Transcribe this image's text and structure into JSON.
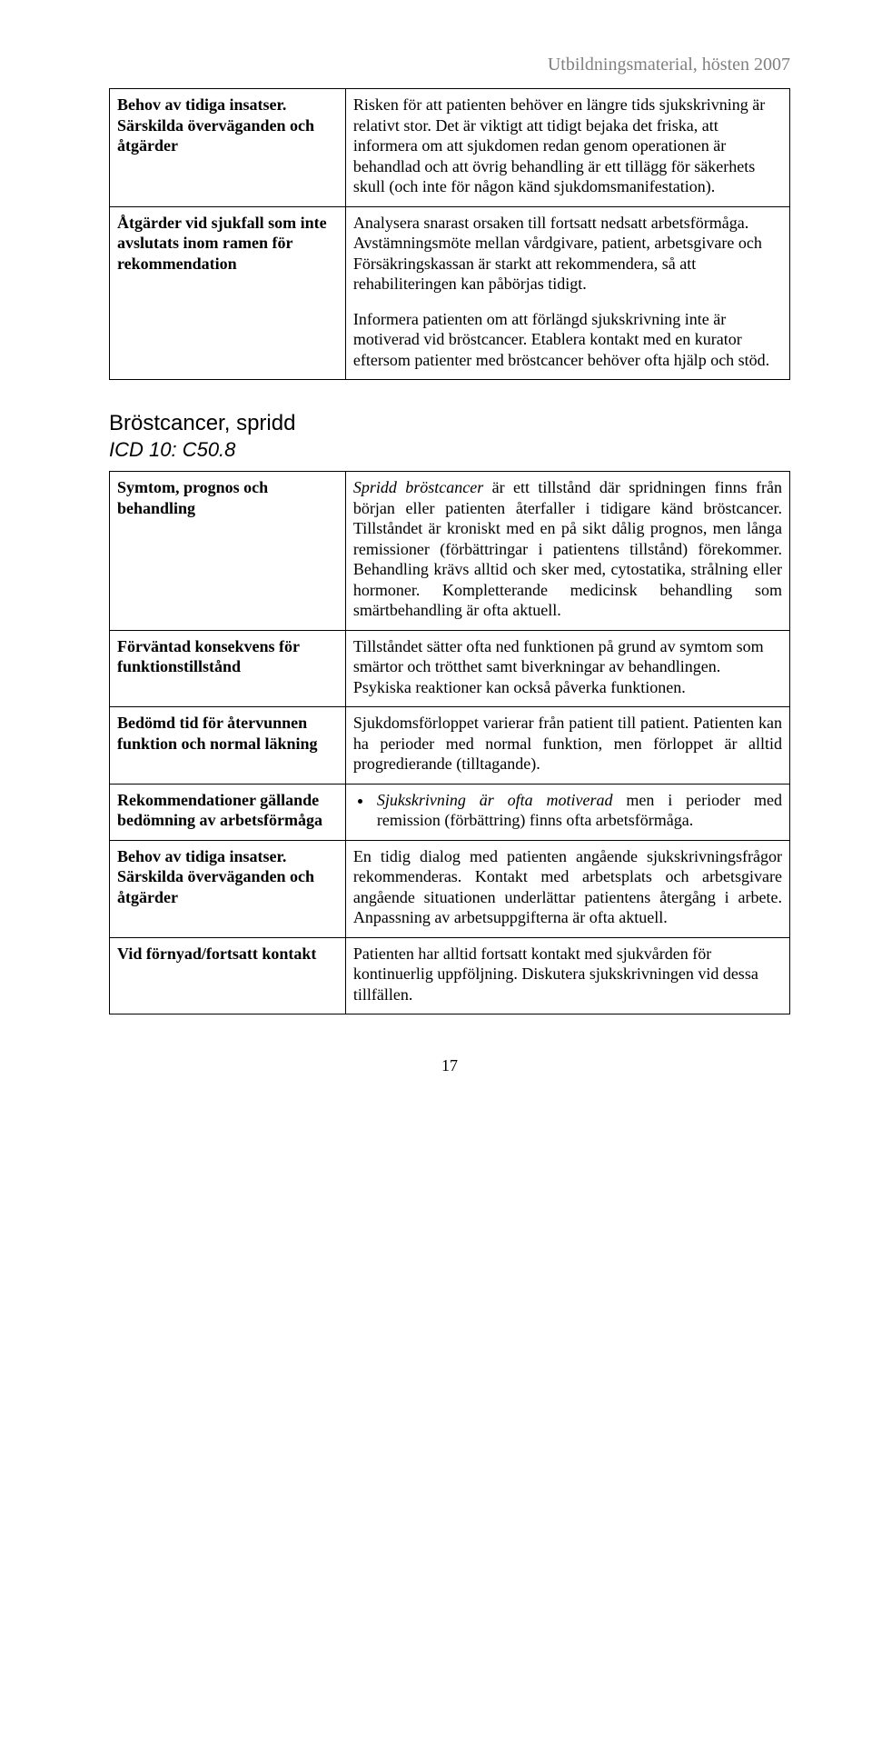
{
  "header": {
    "right": "Utbildningsmaterial, hösten 2007"
  },
  "table1": {
    "rows": [
      {
        "left": "Behov av tidiga insatser. Särskilda överväganden och\nåtgärder",
        "right": "Risken för att patienten behöver en längre tids sjukskrivning är relativt stor. Det är viktigt att tidigt bejaka det friska, att informera om att sjukdomen redan genom operationen är behandlad och att övrig behandling är ett tillägg för säkerhets skull (och inte för någon känd sjukdomsmanifestation)."
      },
      {
        "left": "Åtgärder vid sjukfall som inte avslutats inom ramen för rekommendation",
        "right_p1": "Analysera snarast orsaken till fortsatt nedsatt arbetsförmåga. Avstämningsmöte mellan vårdgivare, patient, arbetsgivare och Försäkringskassan är starkt att rekommendera, så att rehabiliteringen kan påbörjas tidigt.",
        "right_p2": "Informera patienten om att förlängd sjukskrivning inte är motiverad vid bröstcancer. Etablera kontakt med en kurator eftersom patienter med bröstcancer behöver ofta hjälp och stöd."
      }
    ]
  },
  "section2": {
    "title": "Bröstcancer, spridd",
    "subtitle": "ICD 10: C50.8"
  },
  "table2": {
    "rows": [
      {
        "left": "Symtom, prognos och behandling",
        "right_prefix_italic": "Spridd bröstcancer",
        "right_rest": " är ett tillstånd där spridningen finns från början eller patienten återfaller i tidigare känd bröstcancer. Tillståndet är kroniskt med en på sikt dålig prognos, men långa remissioner (förbättringar i patientens tillstånd) förekommer. Behandling krävs alltid och sker med, cytostatika, strålning eller hormoner. Kompletterande medicinsk behandling som smärtbehandling är ofta aktuell."
      },
      {
        "left": "Förväntad konsekvens för funktionstillstånd",
        "right": "Tillståndet sätter ofta ned funktionen på grund av symtom som smärtor och trötthet samt biverkningar av behandlingen. Psykiska reaktioner kan också påverka funktionen."
      },
      {
        "left": "Bedömd tid för återvunnen funktion och normal läkning",
        "right": "Sjukdomsförloppet varierar från patient till patient. Patienten kan ha perioder med normal funktion, men förloppet är alltid progredierande (tilltagande)."
      },
      {
        "left": "Rekommendationer gällande bedömning av arbetsförmåga",
        "bullet_prefix_italic": "Sjukskrivning är ofta motiverad",
        "bullet_rest": " men i perioder med remission (förbättring) finns ofta arbetsförmåga."
      },
      {
        "left": "Behov av tidiga insatser. Särskilda överväganden och åtgärder",
        "right": "En tidig dialog med patienten angående sjukskrivningsfrågor rekommenderas. Kontakt med arbetsplats och arbetsgivare angående situationen underlättar patientens återgång i arbete. Anpassning av arbetsuppgifterna är ofta aktuell."
      },
      {
        "left": "Vid förnyad/fortsatt kontakt",
        "right": "Patienten har alltid fortsatt kontakt med sjukvården för kontinuerlig uppföljning. Diskutera sjukskrivningen vid dessa tillfällen."
      }
    ]
  },
  "page_number": "17"
}
